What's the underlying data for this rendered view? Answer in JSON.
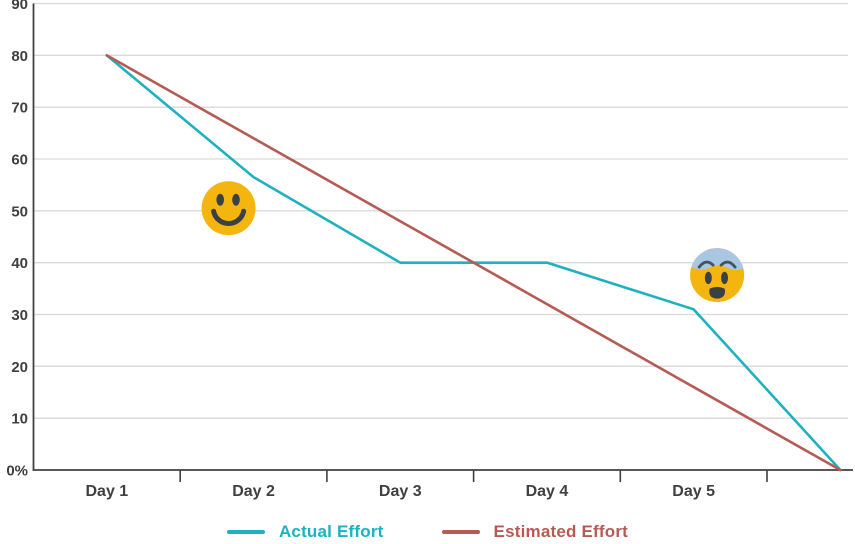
{
  "chart_data": {
    "type": "line",
    "title": "",
    "xlabel": "",
    "ylabel": "",
    "categories": [
      "Day 1",
      "Day 2",
      "Day 3",
      "Day 4",
      "Day 5",
      ""
    ],
    "series": [
      {
        "name": "Actual Effort",
        "color": "#1FB1C1",
        "values": [
          80,
          56.5,
          40,
          40,
          31,
          0
        ]
      },
      {
        "name": "Estimated Effort",
        "color": "#B65B54",
        "values": [
          80,
          64,
          48,
          32,
          16,
          0
        ]
      }
    ],
    "ylim": [
      0,
      90
    ],
    "y_ticks": [
      0,
      10,
      20,
      30,
      40,
      50,
      60,
      70,
      80,
      90
    ],
    "y_tick_labels": [
      "0%",
      "10",
      "20",
      "30",
      "40",
      "50",
      "60",
      "70",
      "80",
      "90"
    ],
    "grid": true,
    "legend_position": "bottom",
    "annotations": [
      {
        "icon": "smiley-face",
        "x_index": 0.83,
        "value": 50.5
      },
      {
        "icon": "fearful-face",
        "x_index": 4.16,
        "value": 37.6
      }
    ]
  },
  "colors": {
    "grid": "#D9D9D9",
    "axis": "#404040",
    "tick_label": "#404040",
    "emoji_yellow": "#F5B50F",
    "emoji_features": "#3B4045",
    "emoji_blue_cap": "#A9C7E2",
    "emoji_brow": "#46525F",
    "background": "#FFFFFF"
  }
}
